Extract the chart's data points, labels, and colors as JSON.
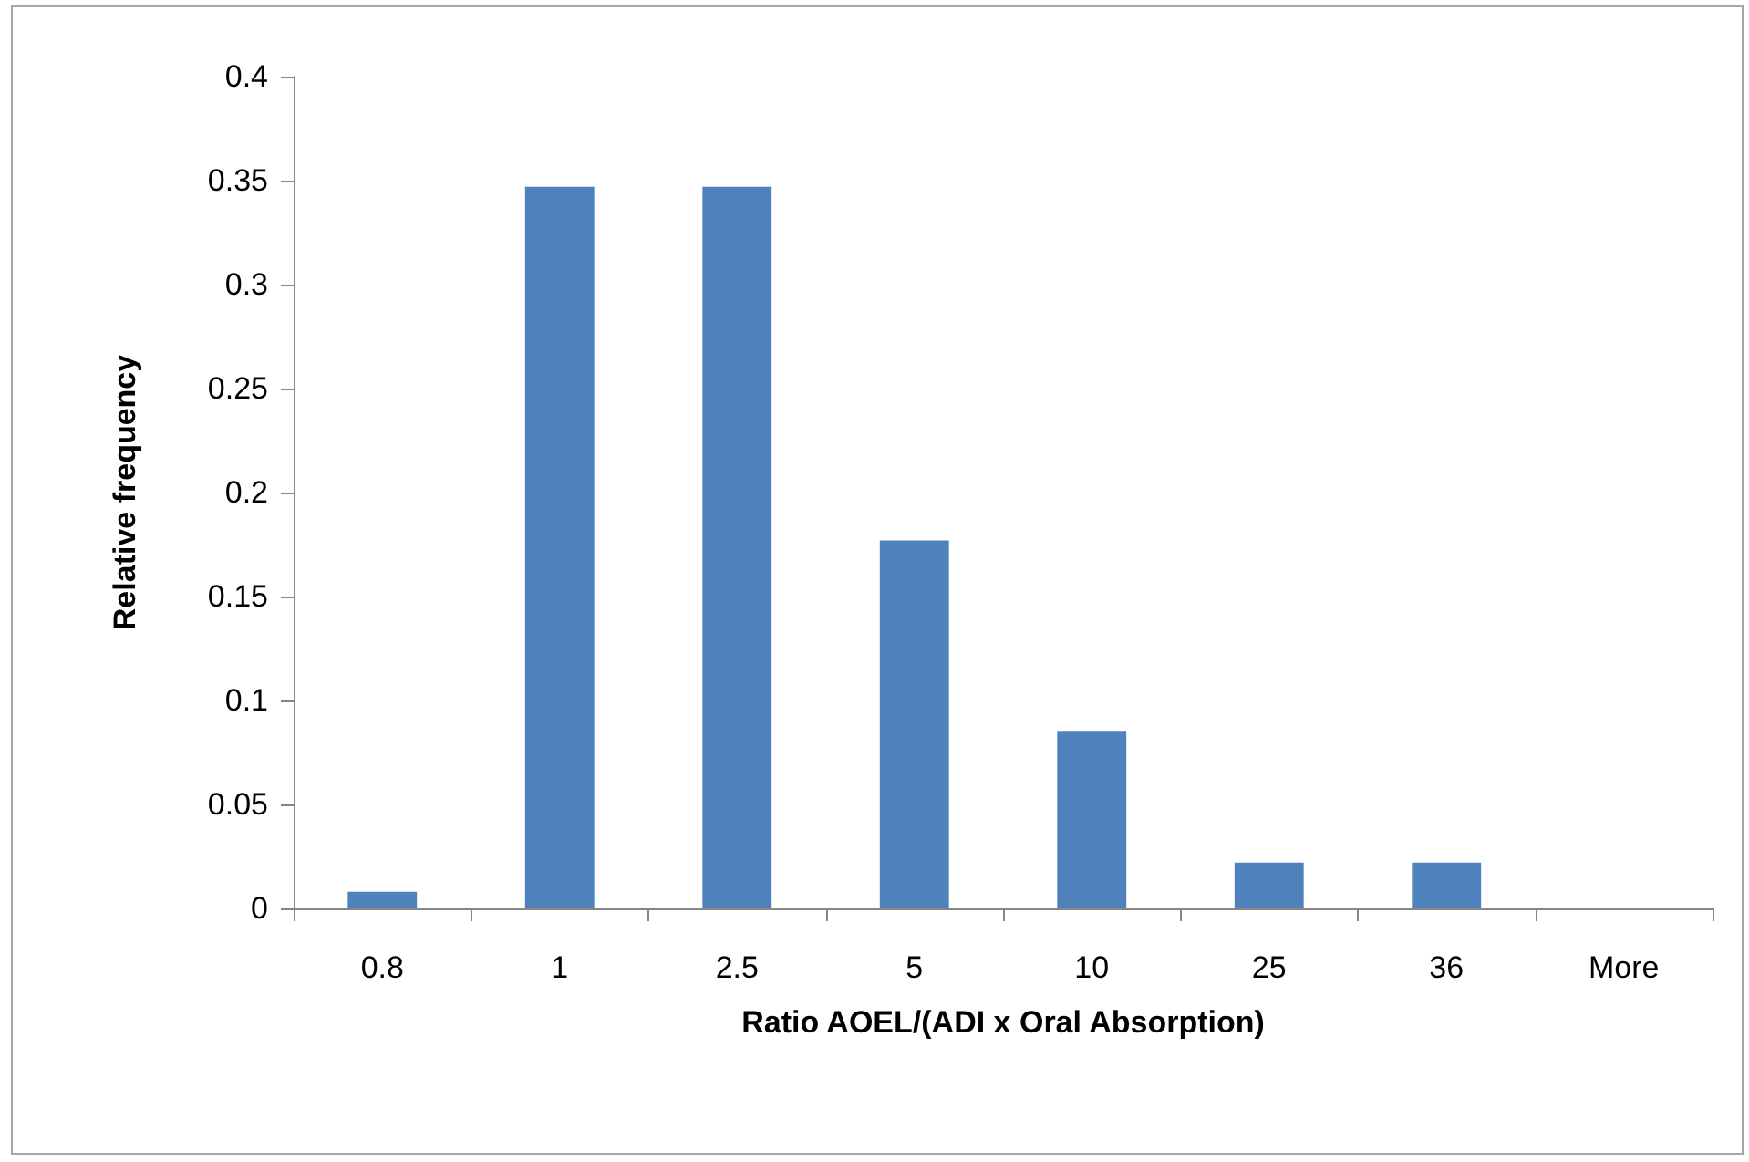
{
  "chart_data": {
    "type": "bar",
    "xlabel": "Ratio AOEL/(ADI x Oral Absorption)",
    "ylabel": "Relative frequency",
    "categories": [
      "0.8",
      "1",
      "2.5",
      "5",
      "10",
      "25",
      "36",
      "More"
    ],
    "values": [
      0.008,
      0.347,
      0.347,
      0.177,
      0.085,
      0.022,
      0.022,
      0
    ],
    "color": "#4f81bd",
    "ylim": [
      0,
      0.4
    ],
    "yticks": [
      0,
      0.05,
      0.1,
      0.15,
      0.2,
      0.25,
      0.3,
      0.35,
      0.4
    ],
    "grid": false
  }
}
